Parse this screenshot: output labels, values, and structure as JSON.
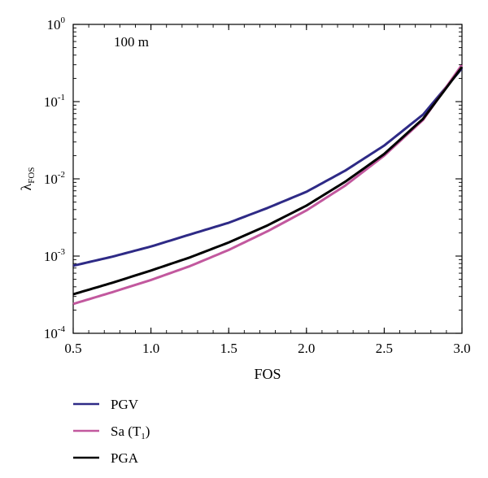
{
  "chart_data": {
    "type": "line",
    "annotation": "100 m",
    "xlabel": "FOS",
    "ylabel": {
      "main": "λ",
      "sub": "FOS"
    },
    "xlim": [
      0.5,
      3.0
    ],
    "ylim": [
      0.0001,
      1
    ],
    "yscale": "log",
    "grid": false,
    "legend_position": "below",
    "x_ticks": [
      "0.5",
      "1.0",
      "1.5",
      "2.0",
      "2.5",
      "3.0"
    ],
    "x_tick_values": [
      0.5,
      1.0,
      1.5,
      2.0,
      2.5,
      3.0
    ],
    "y_ticks": [
      {
        "base": "10",
        "exp": "0",
        "value": 1
      },
      {
        "base": "10",
        "exp": "-1",
        "value": 0.1
      },
      {
        "base": "10",
        "exp": "-2",
        "value": 0.01
      },
      {
        "base": "10",
        "exp": "-3",
        "value": 0.001
      },
      {
        "base": "10",
        "exp": "-4",
        "value": 0.0001
      }
    ],
    "x": [
      0.5,
      0.75,
      1.0,
      1.25,
      1.5,
      1.75,
      2.0,
      2.25,
      2.5,
      2.75,
      3.0
    ],
    "series": [
      {
        "legend": {
          "main": "PGV",
          "sub": ""
        },
        "color": "#2e2a86",
        "values": [
          0.00075,
          0.00098,
          0.00133,
          0.0019,
          0.0027,
          0.0042,
          0.0068,
          0.0128,
          0.027,
          0.068,
          0.27
        ]
      },
      {
        "legend": {
          "main": "Sa (T",
          "sub": "1",
          "suffix": ")"
        },
        "color": "#c2589e",
        "values": [
          0.00024,
          0.00034,
          0.00049,
          0.00074,
          0.0012,
          0.0021,
          0.0039,
          0.0082,
          0.02,
          0.058,
          0.3
        ]
      },
      {
        "legend": {
          "main": "PGA",
          "sub": ""
        },
        "color": "#000000",
        "values": [
          0.00032,
          0.00045,
          0.00065,
          0.00096,
          0.0015,
          0.0025,
          0.0045,
          0.0092,
          0.021,
          0.06,
          0.28
        ]
      }
    ]
  }
}
